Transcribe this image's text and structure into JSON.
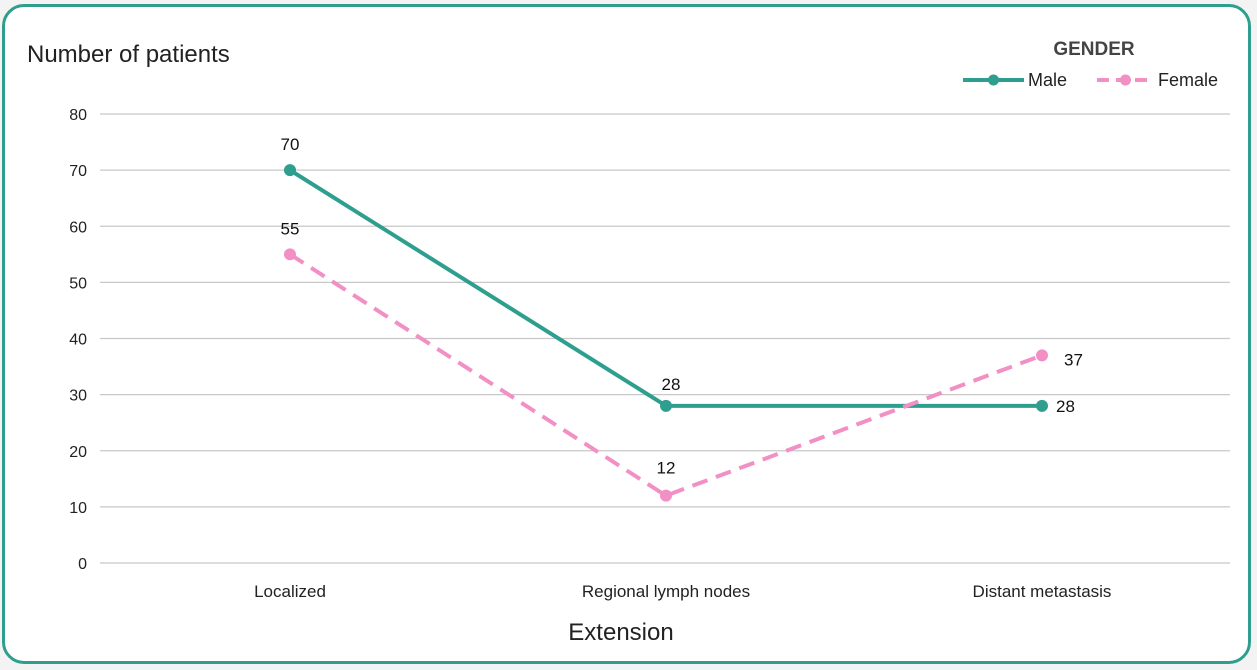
{
  "chart_data": {
    "type": "line",
    "ylabel": "Number of patients",
    "xlabel": "Extension",
    "categories": [
      "Localized",
      "Regional lymph nodes",
      "Distant metastasis"
    ],
    "ylim": [
      0,
      80
    ],
    "yticks": [
      0,
      10,
      20,
      30,
      40,
      50,
      60,
      70,
      80
    ],
    "grid": true,
    "legend": {
      "title": "GENDER",
      "placement": "top-right"
    },
    "series": [
      {
        "name": "Male",
        "values": [
          70,
          28,
          28
        ],
        "color": "#2e9e8f",
        "style": "solid"
      },
      {
        "name": "Female",
        "values": [
          55,
          12,
          37
        ],
        "color": "#f28fc4",
        "style": "dashed"
      }
    ]
  }
}
